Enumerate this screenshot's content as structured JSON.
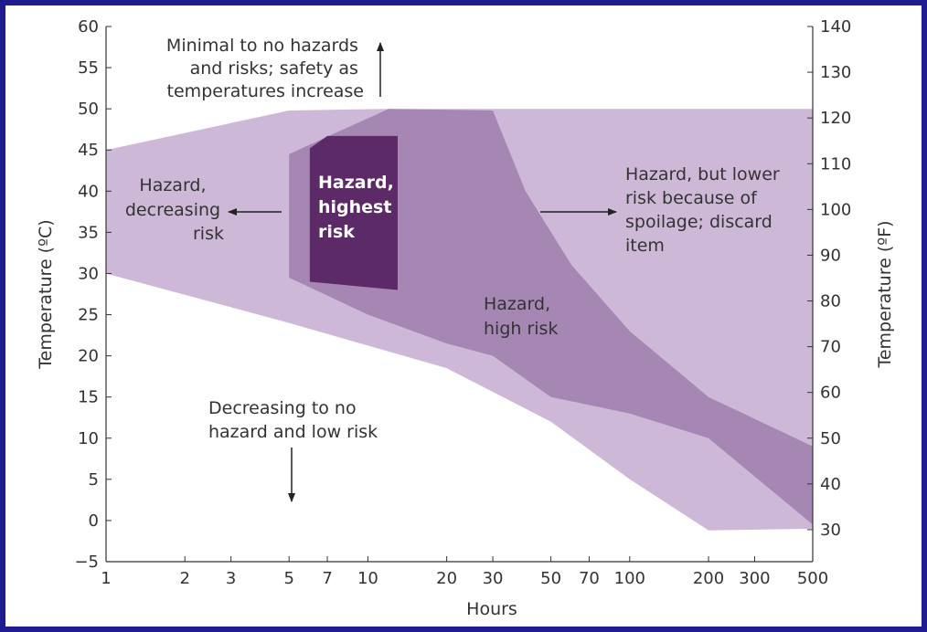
{
  "chart_data": {
    "type": "area",
    "title": "",
    "xlabel": "Hours",
    "ylabel": "Temperature (ºC)",
    "y2label": "Temperature (ºF)",
    "x_scale": "log",
    "xlim": [
      1,
      500
    ],
    "ylim": [
      -5,
      60
    ],
    "y2lim": [
      23,
      140
    ],
    "x_ticks": [
      1,
      2,
      3,
      5,
      7,
      10,
      20,
      30,
      50,
      70,
      100,
      200,
      300,
      500
    ],
    "x_tick_labels": [
      "1",
      "2",
      "3",
      "5",
      "7",
      "10",
      "20",
      "30",
      "50",
      "70",
      "100",
      "200",
      "300",
      "500"
    ],
    "y_ticks": [
      -5,
      0,
      5,
      10,
      15,
      20,
      25,
      30,
      35,
      40,
      45,
      50,
      55,
      60
    ],
    "y_tick_labels": [
      "−5",
      "0",
      "5",
      "10",
      "15",
      "20",
      "25",
      "30",
      "35",
      "40",
      "45",
      "50",
      "55",
      "60"
    ],
    "y2_ticks": [
      30,
      40,
      50,
      60,
      70,
      80,
      90,
      100,
      110,
      120,
      130,
      140
    ],
    "y2_tick_labels": [
      "30",
      "40",
      "50",
      "60",
      "70",
      "80",
      "90",
      "100",
      "110",
      "120",
      "130",
      "140"
    ],
    "regions": [
      {
        "name": "Hazard, decreasing risk",
        "color": "#cdb8d8",
        "points": [
          [
            1,
            45
          ],
          [
            5,
            49.8
          ],
          [
            12,
            50
          ],
          [
            200,
            50
          ],
          [
            500,
            50
          ],
          [
            500,
            -1
          ],
          [
            200,
            -1.2
          ],
          [
            100,
            5
          ],
          [
            50,
            12
          ],
          [
            20,
            18.5
          ],
          [
            5,
            24
          ],
          [
            1,
            30
          ]
        ]
      },
      {
        "name": "Hazard, high risk",
        "color": "#a687b4",
        "points": [
          [
            5,
            44.5
          ],
          [
            12,
            50
          ],
          [
            30,
            49.8
          ],
          [
            40,
            40
          ],
          [
            60,
            31
          ],
          [
            100,
            23
          ],
          [
            200,
            15
          ],
          [
            500,
            9
          ],
          [
            500,
            -0.5
          ],
          [
            200,
            10
          ],
          [
            100,
            13
          ],
          [
            50,
            15
          ],
          [
            30,
            20
          ],
          [
            20,
            21.5
          ],
          [
            10,
            25
          ],
          [
            5,
            29.5
          ]
        ]
      },
      {
        "name": "Hazard, highest risk",
        "color": "#5c2a66",
        "points": [
          [
            6,
            45.2
          ],
          [
            7,
            46.7
          ],
          [
            13,
            46.7
          ],
          [
            13,
            28
          ],
          [
            6,
            29
          ]
        ]
      }
    ],
    "annotations": [
      {
        "name": "safety",
        "lines": [
          "Minimal to no hazards",
          "and risks; safety as",
          "temperatures increase"
        ],
        "arrow": "up"
      },
      {
        "name": "decreasing-risk",
        "lines": [
          "Hazard,",
          "decreasing",
          "risk"
        ],
        "arrow": "left"
      },
      {
        "name": "highest-risk",
        "lines": [
          "Hazard,",
          "highest",
          "risk"
        ],
        "arrow": "none"
      },
      {
        "name": "lower-risk",
        "lines": [
          "Hazard, but lower",
          "risk because of",
          "spoilage; discard",
          "item"
        ],
        "arrow": "right"
      },
      {
        "name": "high-risk",
        "lines": [
          "Hazard,",
          "high risk"
        ],
        "arrow": "none"
      },
      {
        "name": "no-hazard",
        "lines": [
          "Decreasing to no",
          "hazard and low risk"
        ],
        "arrow": "down"
      }
    ]
  }
}
